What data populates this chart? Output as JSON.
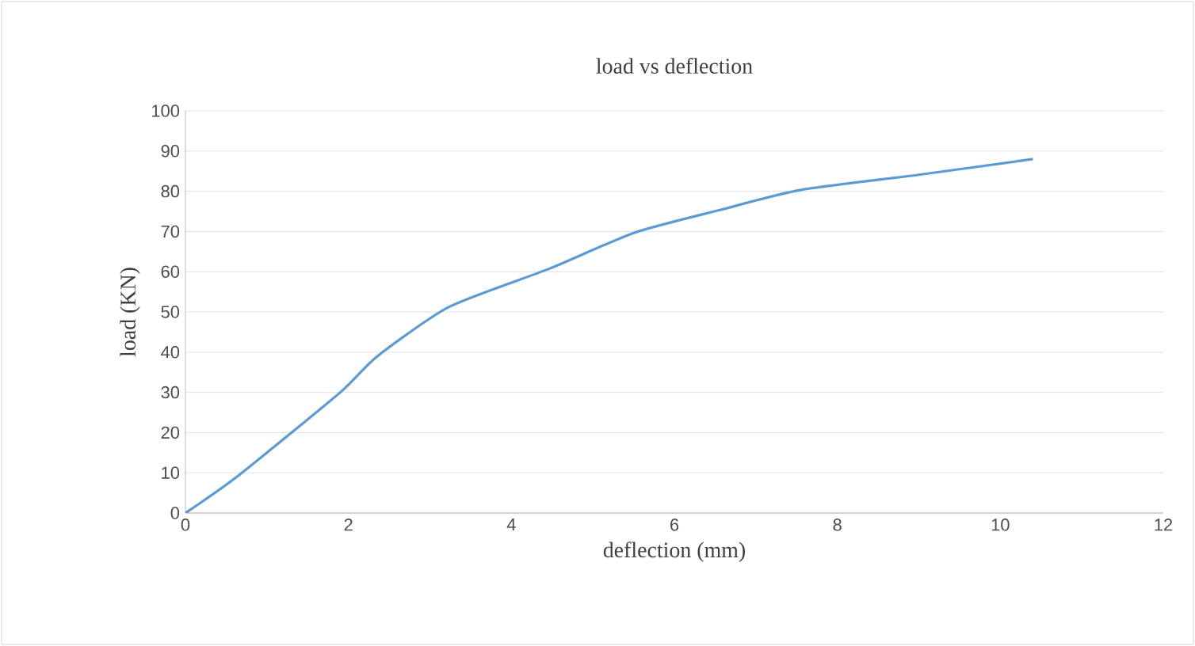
{
  "chart_data": {
    "type": "line",
    "title": "load vs deflection",
    "xlabel": "deflection (mm)",
    "ylabel": "load (KN)",
    "x": [
      0,
      0.65,
      1.9,
      2.35,
      3.24,
      4.46,
      5.51,
      6.57,
      7.54,
      9.0,
      10.4
    ],
    "series": [
      {
        "color": "#5b9bd5",
        "values": [
          0,
          9.3,
          30,
          38.9,
          51.3,
          60.7,
          69.7,
          75.4,
          80.3,
          84.1,
          88.0
        ]
      }
    ],
    "xlim": [
      0,
      12
    ],
    "xticks": [
      0,
      2,
      4,
      6,
      8,
      10,
      12
    ],
    "ylim": [
      0,
      100
    ],
    "yticks": [
      0,
      10,
      20,
      30,
      40,
      50,
      60,
      70,
      80,
      90,
      100
    ],
    "grid": "y",
    "marker": "none",
    "line_style": "solid"
  }
}
